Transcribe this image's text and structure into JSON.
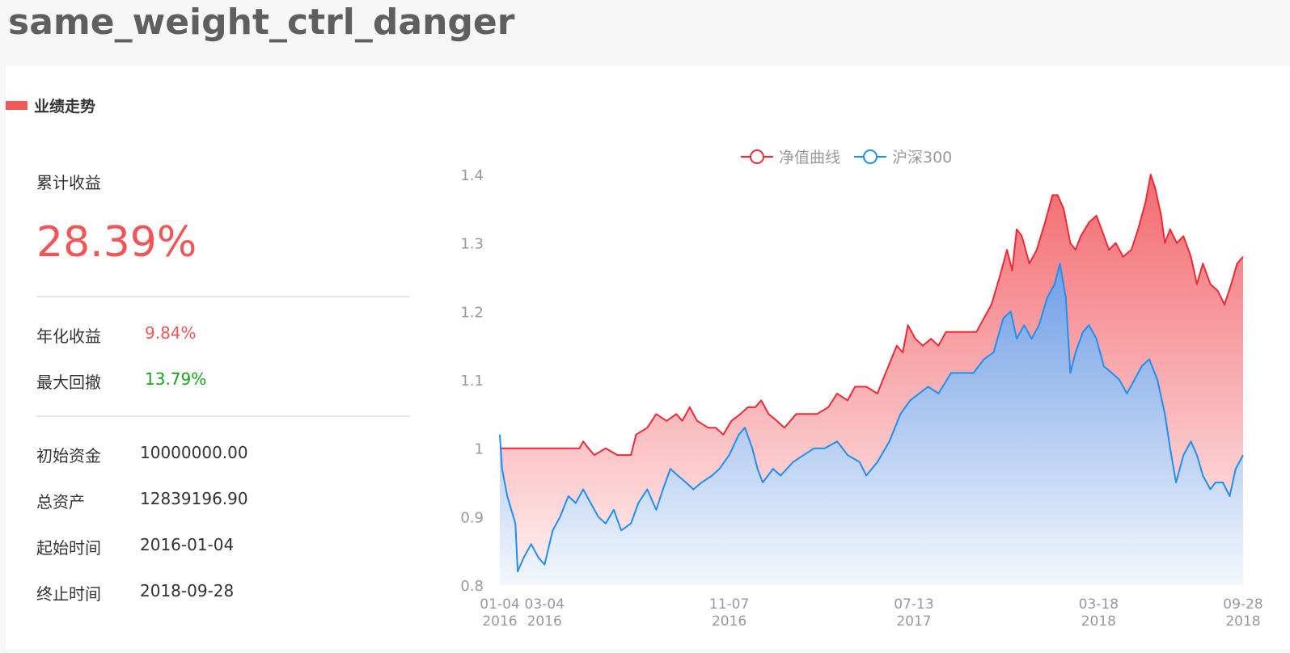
{
  "page": {
    "title": "same_weight_ctrl_danger"
  },
  "section": {
    "title": "业绩走势",
    "accent_color": "#f25a5a"
  },
  "stats": {
    "cumulative_label": "累计收益",
    "cumulative_value": "28.39%",
    "annual_label": "年化收益",
    "annual_value": "9.84%",
    "max_drawdown_label": "最大回撤",
    "max_drawdown_value": "13.79%",
    "initial_capital_label": "初始资金",
    "initial_capital_value": "10000000.00",
    "total_assets_label": "总资产",
    "total_assets_value": "12839196.90",
    "start_label": "起始时间",
    "start_value": "2016-01-04",
    "end_label": "终止时间",
    "end_value": "2018-09-28",
    "positive_color": "#f05656",
    "negative_color": "#1aa31a"
  },
  "chart_data": {
    "type": "area",
    "title": "",
    "xlabel": "",
    "ylabel": "",
    "x_range": [
      "2016-01-04",
      "2018-09-28"
    ],
    "ylim": [
      0.8,
      1.4
    ],
    "y_ticks": [
      0.8,
      0.9,
      1,
      1.1,
      1.2,
      1.3,
      1.4
    ],
    "x_ticks": [
      {
        "date": "2016-01-04",
        "label": "01-04",
        "year": "2016"
      },
      {
        "date": "2016-03-04",
        "label": "03-04",
        "year": "2016"
      },
      {
        "date": "2016-11-07",
        "label": "11-07",
        "year": "2016"
      },
      {
        "date": "2017-07-13",
        "label": "07-13",
        "year": "2017"
      },
      {
        "date": "2018-03-18",
        "label": "03-18",
        "year": "2018"
      },
      {
        "date": "2018-09-28",
        "label": "09-28",
        "year": "2018"
      }
    ],
    "grid": false,
    "legend_position": "top-center",
    "series": [
      {
        "name": "净值曲线",
        "color": "#ee2a36",
        "fill_top": "#f26a70",
        "fill_bottom": "#fff2f3",
        "points": [
          [
            "2016-01-04",
            1.0
          ],
          [
            "2016-02-15",
            1.0
          ],
          [
            "2016-03-20",
            1.0
          ],
          [
            "2016-04-20",
            1.0
          ],
          [
            "2016-04-25",
            1.01
          ],
          [
            "2016-05-02",
            1.0
          ],
          [
            "2016-05-10",
            0.99
          ],
          [
            "2016-05-25",
            1.0
          ],
          [
            "2016-06-10",
            0.99
          ],
          [
            "2016-06-28",
            0.99
          ],
          [
            "2016-07-05",
            1.02
          ],
          [
            "2016-07-20",
            1.03
          ],
          [
            "2016-08-01",
            1.05
          ],
          [
            "2016-08-15",
            1.04
          ],
          [
            "2016-08-28",
            1.05
          ],
          [
            "2016-09-05",
            1.04
          ],
          [
            "2016-09-15",
            1.06
          ],
          [
            "2016-09-25",
            1.04
          ],
          [
            "2016-10-10",
            1.03
          ],
          [
            "2016-10-20",
            1.03
          ],
          [
            "2016-10-30",
            1.02
          ],
          [
            "2016-11-10",
            1.04
          ],
          [
            "2016-11-22",
            1.05
          ],
          [
            "2016-12-02",
            1.06
          ],
          [
            "2016-12-12",
            1.06
          ],
          [
            "2016-12-20",
            1.07
          ],
          [
            "2016-12-30",
            1.05
          ],
          [
            "2017-01-10",
            1.04
          ],
          [
            "2017-01-20",
            1.03
          ],
          [
            "2017-02-05",
            1.05
          ],
          [
            "2017-02-20",
            1.05
          ],
          [
            "2017-03-05",
            1.05
          ],
          [
            "2017-03-20",
            1.06
          ],
          [
            "2017-04-01",
            1.08
          ],
          [
            "2017-04-15",
            1.07
          ],
          [
            "2017-04-25",
            1.09
          ],
          [
            "2017-05-10",
            1.09
          ],
          [
            "2017-05-25",
            1.08
          ],
          [
            "2017-06-05",
            1.11
          ],
          [
            "2017-06-20",
            1.15
          ],
          [
            "2017-06-28",
            1.14
          ],
          [
            "2017-07-05",
            1.18
          ],
          [
            "2017-07-15",
            1.16
          ],
          [
            "2017-07-25",
            1.15
          ],
          [
            "2017-08-05",
            1.16
          ],
          [
            "2017-08-15",
            1.15
          ],
          [
            "2017-08-25",
            1.17
          ],
          [
            "2017-09-15",
            1.17
          ],
          [
            "2017-10-05",
            1.17
          ],
          [
            "2017-10-15",
            1.19
          ],
          [
            "2017-10-25",
            1.21
          ],
          [
            "2017-11-05",
            1.25
          ],
          [
            "2017-11-15",
            1.29
          ],
          [
            "2017-11-22",
            1.26
          ],
          [
            "2017-11-28",
            1.32
          ],
          [
            "2017-12-05",
            1.31
          ],
          [
            "2017-12-15",
            1.27
          ],
          [
            "2017-12-25",
            1.29
          ],
          [
            "2018-01-05",
            1.33
          ],
          [
            "2018-01-15",
            1.37
          ],
          [
            "2018-01-22",
            1.37
          ],
          [
            "2018-01-30",
            1.35
          ],
          [
            "2018-02-08",
            1.3
          ],
          [
            "2018-02-15",
            1.29
          ],
          [
            "2018-02-22",
            1.31
          ],
          [
            "2018-03-05",
            1.33
          ],
          [
            "2018-03-15",
            1.34
          ],
          [
            "2018-03-22",
            1.32
          ],
          [
            "2018-04-01",
            1.29
          ],
          [
            "2018-04-10",
            1.3
          ],
          [
            "2018-04-20",
            1.28
          ],
          [
            "2018-05-01",
            1.29
          ],
          [
            "2018-05-10",
            1.32
          ],
          [
            "2018-05-20",
            1.36
          ],
          [
            "2018-05-27",
            1.4
          ],
          [
            "2018-06-02",
            1.38
          ],
          [
            "2018-06-10",
            1.34
          ],
          [
            "2018-06-15",
            1.3
          ],
          [
            "2018-06-22",
            1.32
          ],
          [
            "2018-07-01",
            1.3
          ],
          [
            "2018-07-10",
            1.31
          ],
          [
            "2018-07-20",
            1.28
          ],
          [
            "2018-07-28",
            1.24
          ],
          [
            "2018-08-05",
            1.27
          ],
          [
            "2018-08-15",
            1.24
          ],
          [
            "2018-08-25",
            1.23
          ],
          [
            "2018-09-03",
            1.21
          ],
          [
            "2018-09-12",
            1.24
          ],
          [
            "2018-09-20",
            1.27
          ],
          [
            "2018-09-28",
            1.28
          ]
        ]
      },
      {
        "name": "沪深300",
        "color": "#1f8ff2",
        "fill_top": "#6f9ee6",
        "fill_bottom": "#f3f7fd",
        "points": [
          [
            "2016-01-04",
            1.02
          ],
          [
            "2016-01-07",
            0.97
          ],
          [
            "2016-01-14",
            0.93
          ],
          [
            "2016-01-25",
            0.89
          ],
          [
            "2016-01-28",
            0.82
          ],
          [
            "2016-02-05",
            0.84
          ],
          [
            "2016-02-15",
            0.86
          ],
          [
            "2016-02-25",
            0.84
          ],
          [
            "2016-03-04",
            0.83
          ],
          [
            "2016-03-15",
            0.88
          ],
          [
            "2016-03-25",
            0.9
          ],
          [
            "2016-04-05",
            0.93
          ],
          [
            "2016-04-15",
            0.92
          ],
          [
            "2016-04-25",
            0.94
          ],
          [
            "2016-05-05",
            0.92
          ],
          [
            "2016-05-15",
            0.9
          ],
          [
            "2016-05-25",
            0.89
          ],
          [
            "2016-06-05",
            0.91
          ],
          [
            "2016-06-15",
            0.88
          ],
          [
            "2016-06-28",
            0.89
          ],
          [
            "2016-07-08",
            0.92
          ],
          [
            "2016-07-20",
            0.94
          ],
          [
            "2016-08-01",
            0.91
          ],
          [
            "2016-08-10",
            0.94
          ],
          [
            "2016-08-20",
            0.97
          ],
          [
            "2016-08-30",
            0.96
          ],
          [
            "2016-09-10",
            0.95
          ],
          [
            "2016-09-20",
            0.94
          ],
          [
            "2016-10-01",
            0.95
          ],
          [
            "2016-10-15",
            0.96
          ],
          [
            "2016-10-25",
            0.97
          ],
          [
            "2016-11-07",
            0.99
          ],
          [
            "2016-11-20",
            1.02
          ],
          [
            "2016-11-28",
            1.03
          ],
          [
            "2016-12-08",
            1.0
          ],
          [
            "2016-12-15",
            0.97
          ],
          [
            "2016-12-22",
            0.95
          ],
          [
            "2017-01-05",
            0.97
          ],
          [
            "2017-01-15",
            0.96
          ],
          [
            "2017-02-01",
            0.98
          ],
          [
            "2017-02-15",
            0.99
          ],
          [
            "2017-03-01",
            1.0
          ],
          [
            "2017-03-15",
            1.0
          ],
          [
            "2017-04-01",
            1.01
          ],
          [
            "2017-04-15",
            0.99
          ],
          [
            "2017-05-01",
            0.98
          ],
          [
            "2017-05-10",
            0.96
          ],
          [
            "2017-05-25",
            0.98
          ],
          [
            "2017-06-10",
            1.01
          ],
          [
            "2017-06-25",
            1.05
          ],
          [
            "2017-07-08",
            1.07
          ],
          [
            "2017-07-20",
            1.08
          ],
          [
            "2017-08-01",
            1.09
          ],
          [
            "2017-08-15",
            1.08
          ],
          [
            "2017-09-01",
            1.11
          ],
          [
            "2017-09-15",
            1.11
          ],
          [
            "2017-10-01",
            1.11
          ],
          [
            "2017-10-15",
            1.13
          ],
          [
            "2017-10-28",
            1.14
          ],
          [
            "2017-11-10",
            1.19
          ],
          [
            "2017-11-20",
            1.2
          ],
          [
            "2017-11-28",
            1.16
          ],
          [
            "2017-12-08",
            1.18
          ],
          [
            "2017-12-18",
            1.16
          ],
          [
            "2017-12-28",
            1.18
          ],
          [
            "2018-01-08",
            1.22
          ],
          [
            "2018-01-18",
            1.24
          ],
          [
            "2018-01-25",
            1.27
          ],
          [
            "2018-02-02",
            1.22
          ],
          [
            "2018-02-08",
            1.11
          ],
          [
            "2018-02-15",
            1.14
          ],
          [
            "2018-02-25",
            1.17
          ],
          [
            "2018-03-05",
            1.18
          ],
          [
            "2018-03-15",
            1.16
          ],
          [
            "2018-03-25",
            1.12
          ],
          [
            "2018-04-05",
            1.11
          ],
          [
            "2018-04-15",
            1.1
          ],
          [
            "2018-04-25",
            1.08
          ],
          [
            "2018-05-05",
            1.1
          ],
          [
            "2018-05-15",
            1.12
          ],
          [
            "2018-05-25",
            1.13
          ],
          [
            "2018-06-05",
            1.1
          ],
          [
            "2018-06-15",
            1.05
          ],
          [
            "2018-06-22",
            1.0
          ],
          [
            "2018-06-30",
            0.95
          ],
          [
            "2018-07-10",
            0.99
          ],
          [
            "2018-07-20",
            1.01
          ],
          [
            "2018-07-28",
            0.99
          ],
          [
            "2018-08-05",
            0.96
          ],
          [
            "2018-08-15",
            0.94
          ],
          [
            "2018-08-22",
            0.95
          ],
          [
            "2018-09-01",
            0.95
          ],
          [
            "2018-09-10",
            0.93
          ],
          [
            "2018-09-18",
            0.97
          ],
          [
            "2018-09-28",
            0.99
          ]
        ]
      }
    ]
  }
}
